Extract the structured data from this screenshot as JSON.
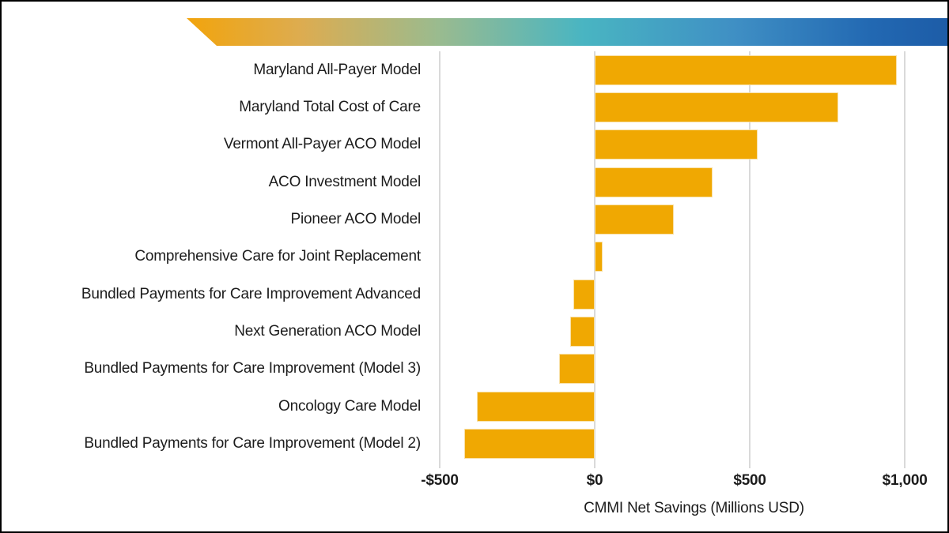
{
  "banner": {
    "gradient_stops": [
      "#F2A40C",
      "#DDAC50",
      "#9ABB8F",
      "#49B5C2",
      "#3F8FC4",
      "#2268B2",
      "#1D5CA7"
    ]
  },
  "chart_data": {
    "type": "bar",
    "orientation": "horizontal",
    "title": "",
    "xlabel": "CMMI Net Savings (Millions USD)",
    "ylabel": "",
    "categories": [
      "Maryland All-Payer Model",
      "Maryland Total Cost of Care",
      "Vermont All-Payer ACO Model",
      "ACO Investment Model",
      "Pioneer ACO Model",
      "Comprehensive Care for Joint Replacement",
      "Bundled Payments for Care Improvement Advanced",
      "Next Generation ACO Model",
      "Bundled Payments for Care Improvement (Model 3)",
      "Oncology Care Model",
      "Bundled Payments for Care Improvement (Model 2)"
    ],
    "values": [
      975,
      785,
      525,
      380,
      255,
      25,
      -70,
      -80,
      -115,
      -380,
      -420
    ],
    "xlim": [
      -500,
      1140
    ],
    "x_ticks": [
      {
        "label": "-$500",
        "value": -500
      },
      {
        "label": "$0",
        "value": 0
      },
      {
        "label": "$500",
        "value": 500
      },
      {
        "label": "$1,000",
        "value": 1000
      }
    ],
    "grid": "vertical-gridlines-only",
    "legend": "none",
    "bar_color": "#F0A802",
    "bar_border_color": "#F8E0A6",
    "gridline_color": "#D9D9D9",
    "text_color": "#1C1C1C"
  }
}
